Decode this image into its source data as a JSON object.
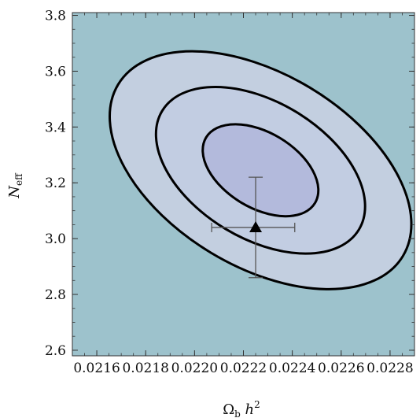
{
  "chart_data": {
    "type": "contour",
    "xlabel": {
      "main": "Ω",
      "sub": "b",
      "rest": " h",
      "sup": "2"
    },
    "ylabel": {
      "main": "N",
      "sub": "eff"
    },
    "xlim": [
      0.0215,
      0.0229
    ],
    "ylim": [
      2.58,
      3.81
    ],
    "x_ticks": [
      0.0216,
      0.0218,
      0.022,
      0.0222,
      0.0224,
      0.0226,
      0.0228
    ],
    "x_tick_labels": [
      "0.0216",
      "0.0218",
      "0.0220",
      "0.0222",
      "0.0224",
      "0.0226",
      "0.0228"
    ],
    "y_ticks": [
      2.6,
      2.8,
      3.0,
      3.2,
      3.4,
      3.6,
      3.8
    ],
    "y_tick_labels": [
      "2.6",
      "2.8",
      "3.0",
      "3.2",
      "3.4",
      "3.6",
      "3.8"
    ],
    "contours": [
      {
        "level": "outer",
        "center": [
          0.02227,
          3.245
        ],
        "rx": 0.00068,
        "ry": 0.345,
        "rotation_deg": 31,
        "fill": "#c3cfe0"
      },
      {
        "level": "middle",
        "center": [
          0.02227,
          3.245
        ],
        "rx": 0.00047,
        "ry": 0.245,
        "rotation_deg": 31,
        "fill": "#c2cde2"
      },
      {
        "level": "inner",
        "center": [
          0.02227,
          3.245
        ],
        "rx": 0.00026,
        "ry": 0.135,
        "rotation_deg": 31,
        "fill": "#b3badc"
      }
    ],
    "point": {
      "x": 0.02225,
      "y": 3.04,
      "x_err": [
        0.02207,
        0.02241
      ],
      "y_err": [
        2.86,
        3.22
      ],
      "marker": "triangle"
    },
    "colors": {
      "background": "#9dc2cc",
      "contour_line": "#000000",
      "marker": "#000000",
      "errorbar": "#555555"
    }
  }
}
